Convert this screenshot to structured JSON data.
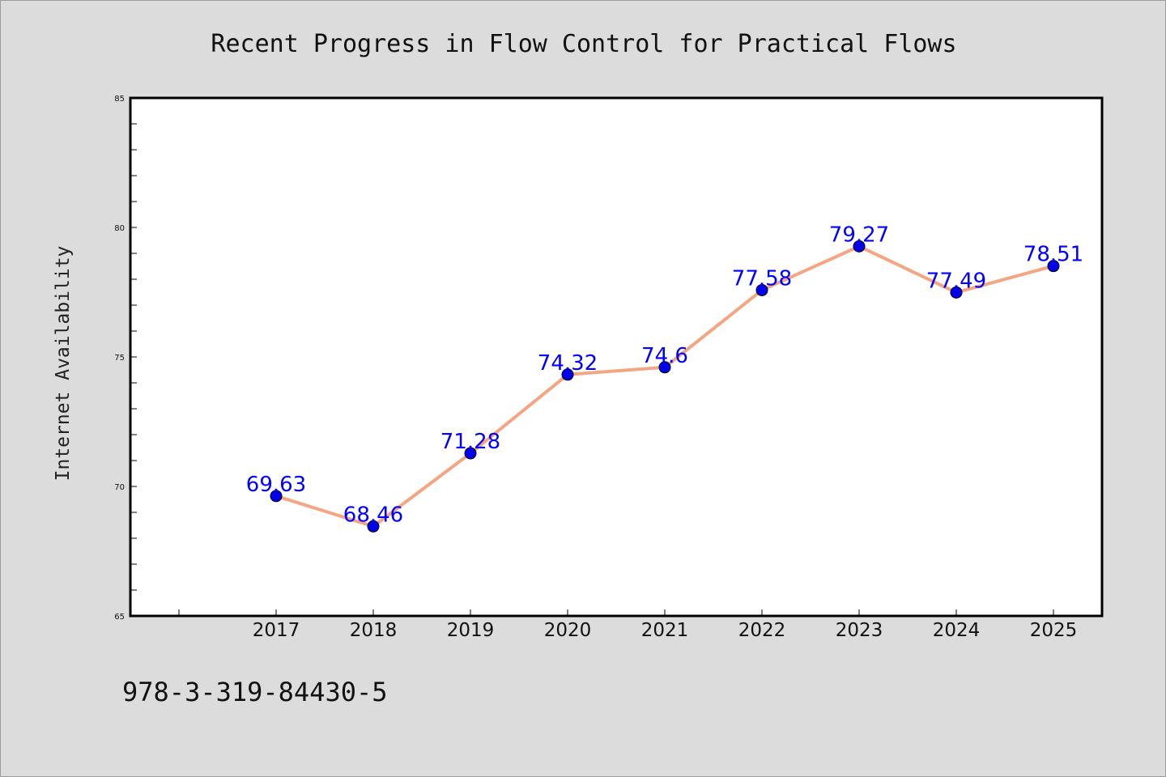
{
  "chart_data": {
    "type": "line",
    "title": "Recent Progress in Flow Control for Practical Flows",
    "xlabel": "",
    "ylabel": "Internet Availability",
    "categories": [
      "2017",
      "2018",
      "2019",
      "2020",
      "2021",
      "2022",
      "2023",
      "2024",
      "2025"
    ],
    "series": [
      {
        "values": [
          69.63,
          68.46,
          71.28,
          74.32,
          74.6,
          77.58,
          79.27,
          77.49,
          78.51
        ],
        "data_labels": [
          "69.63",
          "68.46",
          "71.28",
          "74.32",
          "74.6",
          "77.58",
          "79.27",
          "77.49",
          "78.51"
        ],
        "line_color": "#f4a582",
        "marker_color": "#0000ee",
        "label_color": "#0000ff"
      }
    ],
    "ylim": [
      65,
      85
    ],
    "yticks": [
      65,
      70,
      75,
      80,
      85
    ],
    "ytick_labels": [
      "65",
      "70",
      "75",
      "80",
      "85"
    ],
    "grid": false,
    "legend": "none"
  },
  "footer": {
    "text": "978-3-319-84430-5"
  },
  "colors": {
    "background": "#dcdcdc",
    "plot_background": "#ffffff",
    "axis": "#000000"
  }
}
